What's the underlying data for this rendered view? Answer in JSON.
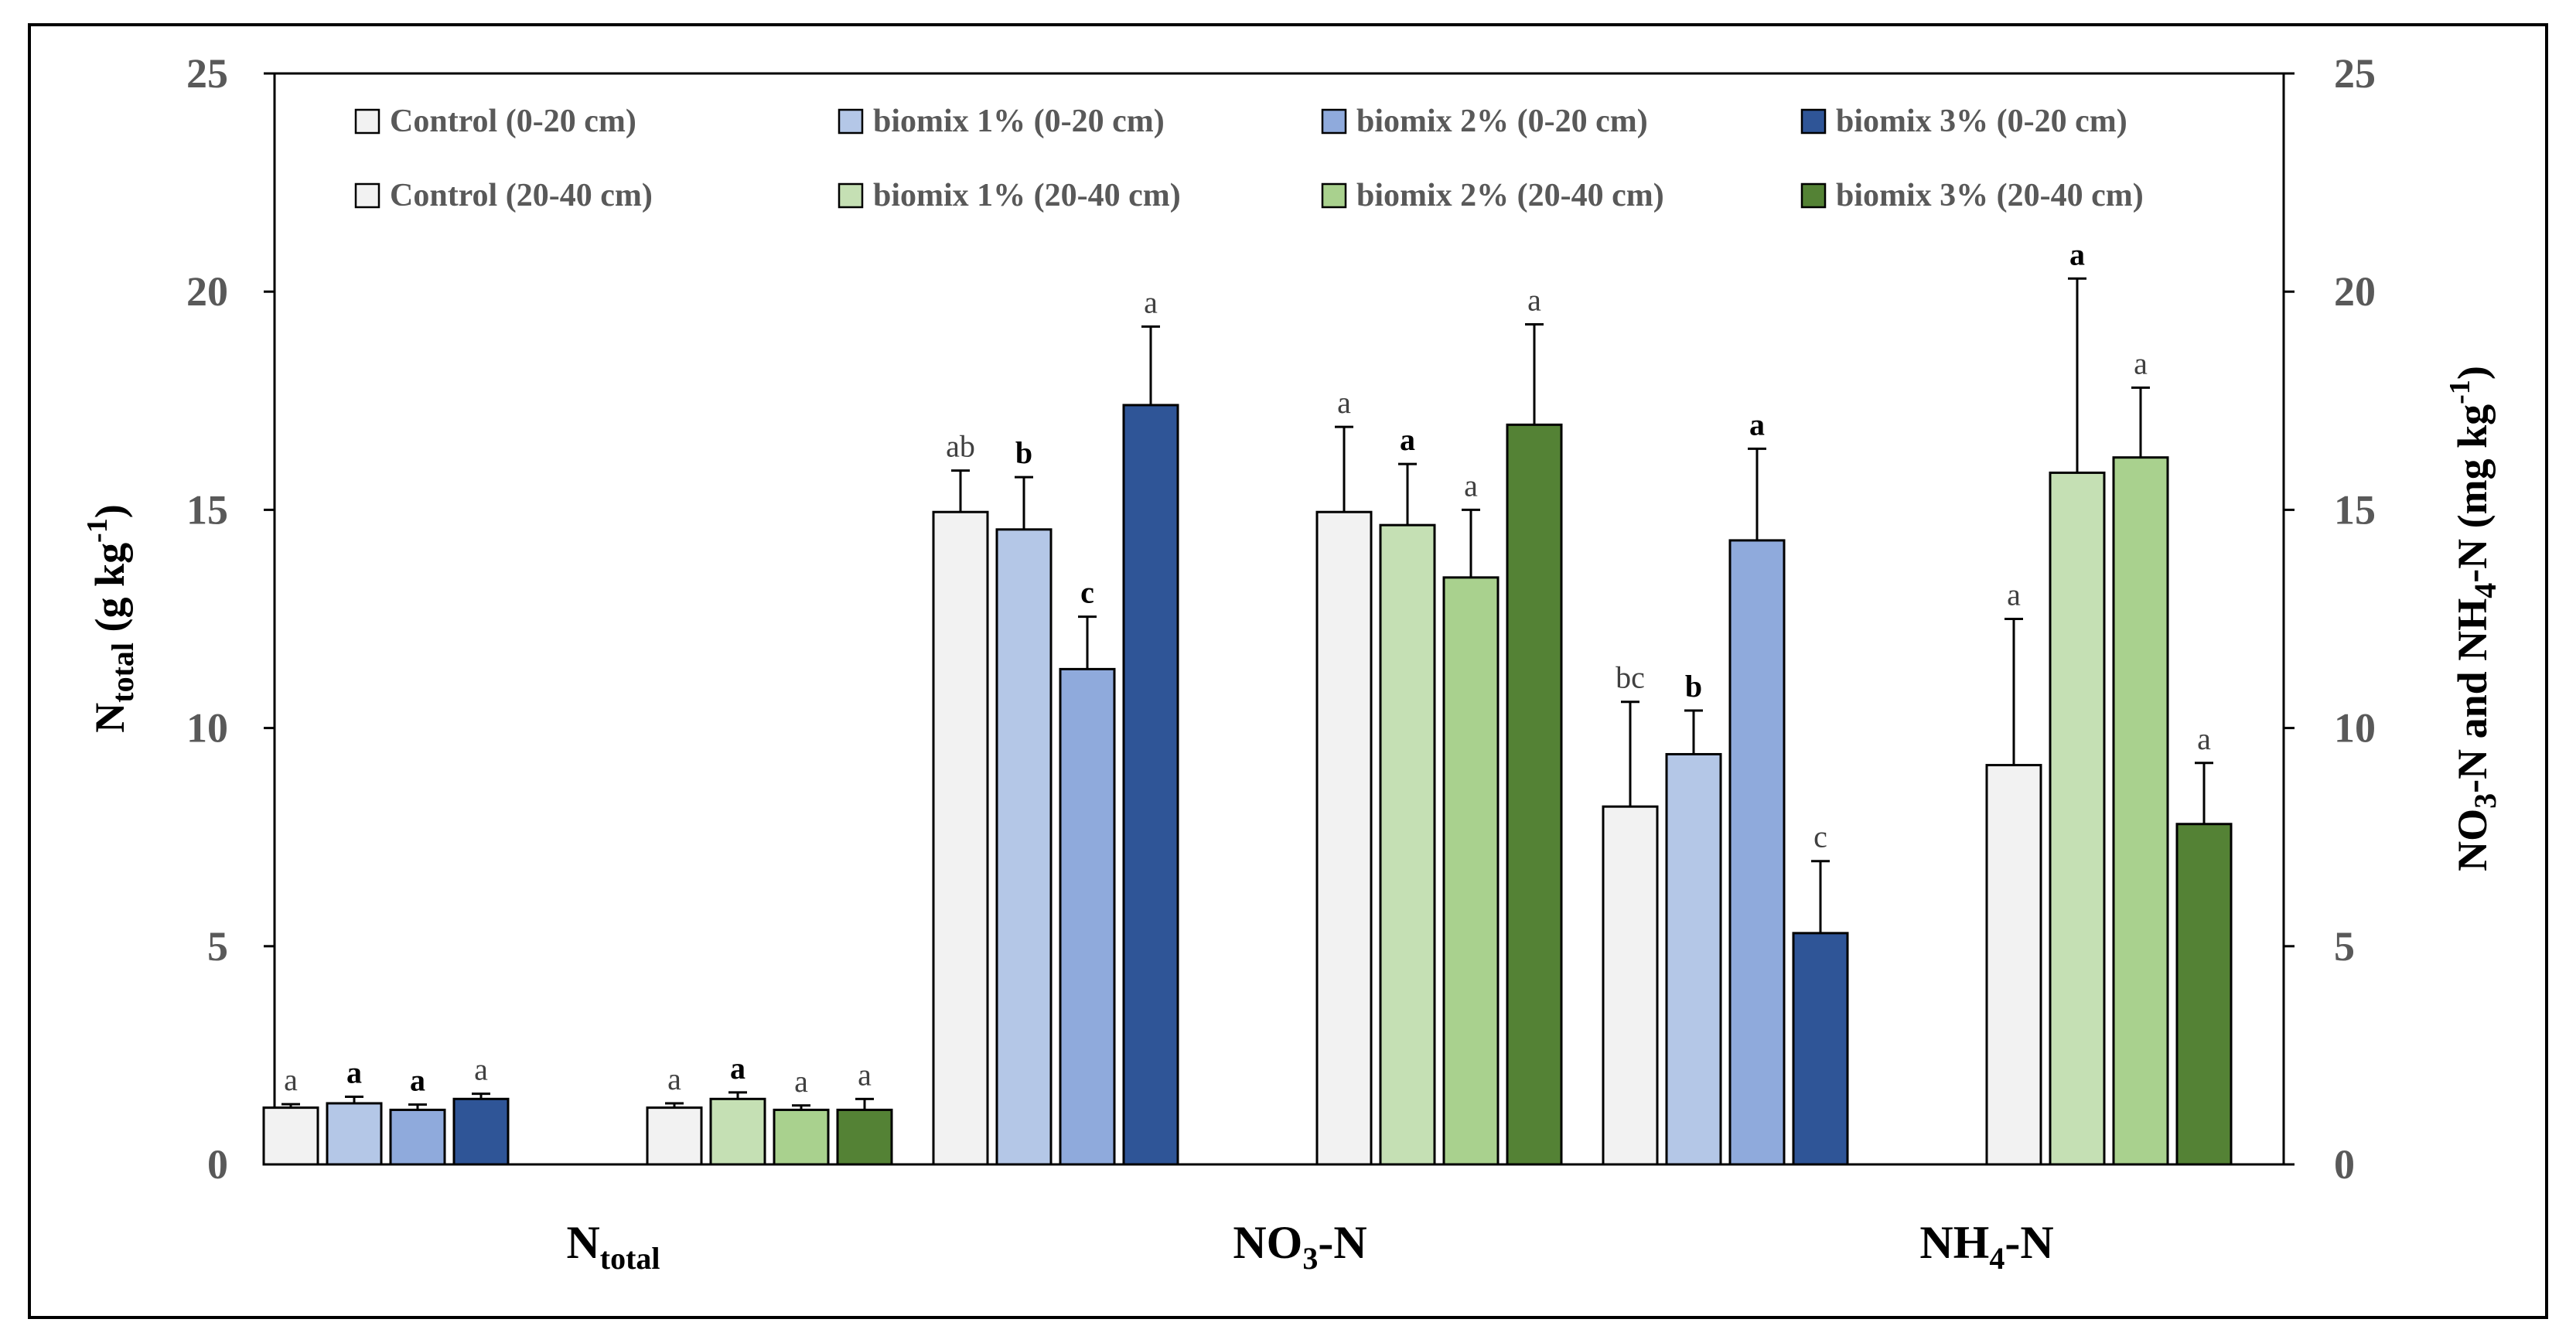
{
  "chart_data": {
    "type": "bar",
    "title": "",
    "ylabel_left": {
      "main": "N",
      "sub": "total",
      "unit_pre": " (g kg",
      "unit_sup": "-1",
      "unit_post": ")"
    },
    "ylabel_right": {
      "p1": "NO",
      "s1": "3",
      "p2": "-N and NH",
      "s2": "4",
      "p3": "-N (mg kg",
      "sup": "-1",
      "p4": ")"
    },
    "ylim_left": [
      0,
      25
    ],
    "ylim_right": [
      0,
      25
    ],
    "yticks": [
      0,
      5,
      10,
      15,
      20,
      25
    ],
    "yticks_left_text": [
      "0",
      "5",
      "10",
      "15",
      "20",
      "25"
    ],
    "yticks_right_text": [
      "0",
      "5",
      "10",
      "15",
      "20",
      "25"
    ],
    "groups": [
      {
        "id": "ntotal",
        "main": "N",
        "sub": "total",
        "rest": ""
      },
      {
        "id": "no3",
        "main": "NO",
        "sub": "3",
        "rest": "-N"
      },
      {
        "id": "nh4",
        "main": "NH",
        "sub": "4",
        "rest": "-N"
      }
    ],
    "series": [
      {
        "name": "Control (0-20 cm)",
        "color": "#f2f2f2",
        "values": [
          1.3,
          14.95,
          8.2
        ],
        "errors": [
          0.08,
          0.95,
          2.4
        ],
        "letters": [
          "a",
          "ab",
          "bc"
        ],
        "bold": [
          false,
          false,
          false
        ]
      },
      {
        "name": "biomix 1% (0-20 cm)",
        "color": "#b4c7e7",
        "values": [
          1.4,
          14.55,
          9.4
        ],
        "errors": [
          0.15,
          1.2,
          1.0
        ],
        "letters": [
          "a",
          "b",
          "b"
        ],
        "bold": [
          true,
          true,
          true
        ]
      },
      {
        "name": "biomix 2% (0-20 cm)",
        "color": "#8faadc",
        "values": [
          1.25,
          11.35,
          14.3
        ],
        "errors": [
          0.12,
          1.2,
          2.1
        ],
        "letters": [
          "a",
          "c",
          "a"
        ],
        "bold": [
          true,
          true,
          true
        ]
      },
      {
        "name": "biomix 3% (0-20 cm)",
        "color": "#2f5597",
        "values": [
          1.5,
          17.4,
          5.3
        ],
        "errors": [
          0.12,
          1.8,
          1.65
        ],
        "letters": [
          "a",
          "a",
          "c"
        ],
        "bold": [
          false,
          false,
          false
        ]
      },
      {
        "name": "Control (20-40 cm)",
        "color": "#f2f2f2",
        "values": [
          1.3,
          14.95,
          9.15
        ],
        "errors": [
          0.1,
          1.95,
          3.35
        ],
        "letters": [
          "a",
          "a",
          "a"
        ],
        "bold": [
          false,
          false,
          false
        ]
      },
      {
        "name": "biomix 1% (20-40 cm)",
        "color": "#c5e0b4",
        "values": [
          1.5,
          14.65,
          15.85
        ],
        "errors": [
          0.15,
          1.4,
          4.45
        ],
        "letters": [
          "a",
          "a",
          "a"
        ],
        "bold": [
          true,
          true,
          true
        ]
      },
      {
        "name": "biomix 2% (20-40 cm)",
        "color": "#a9d18e",
        "values": [
          1.25,
          13.45,
          16.2
        ],
        "errors": [
          0.1,
          1.55,
          1.6
        ],
        "letters": [
          "a",
          "a",
          "a"
        ],
        "bold": [
          false,
          false,
          false
        ]
      },
      {
        "name": "biomix 3% (20-40 cm)",
        "color": "#548235",
        "values": [
          1.25,
          16.95,
          7.8
        ],
        "errors": [
          0.25,
          2.3,
          1.4
        ],
        "letters": [
          "a",
          "a",
          "a"
        ],
        "bold": [
          false,
          false,
          false
        ]
      }
    ]
  }
}
